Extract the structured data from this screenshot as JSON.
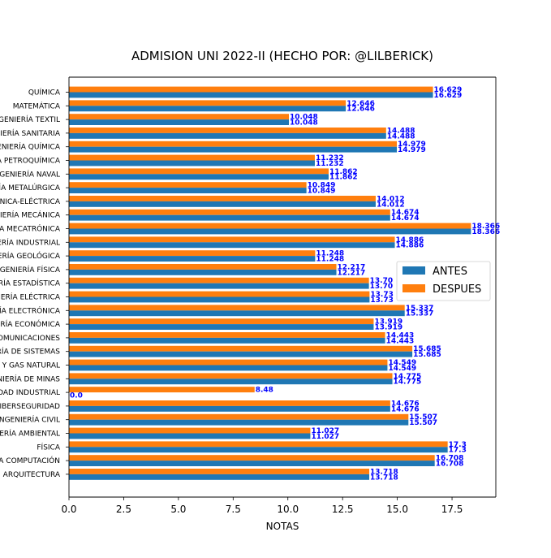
{
  "chart_data": {
    "type": "bar",
    "orientation": "horizontal",
    "title": "ADMISION UNI 2022-II (HECHO POR: @LILBERICK)",
    "xlabel": "NOTAS",
    "ylabel": "",
    "xlim": [
      0,
      19.5
    ],
    "xticks": [
      "0.0",
      "2.5",
      "5.0",
      "7.5",
      "10.0",
      "12.5",
      "15.0",
      "17.5"
    ],
    "grid": false,
    "legend_position": "center-right",
    "label_color": "#0000ff",
    "categories": [
      "QUÍMICA",
      "MATEMÁTICA",
      "INGENIERÍA TEXTIL",
      "INGENIERÍA SANITARIA",
      "INGENIERÍA QUÍMICA",
      "INGENIERÍA PETROQUÍMICA",
      "INGENIERÍA NAVAL",
      "INGENIERÍA METALÚRGICA",
      "INGENIERÍA MECÁNICA-ELÉCTRICA",
      "INGENIERÍA MECÁNICA",
      "INGENIERÍA MECATRÓNICA",
      "INGENIERÍA INDUSTRIAL",
      "INGENIERÍA GEOLÓGICA",
      "INGENIERÍA FÍSICA",
      "INGENIERÍA ESTADÍSTICA",
      "INGENIERÍA ELÉCTRICA",
      "INGENIERÍA ELECTRÓNICA",
      "INGENIERÍA ECONÓMICA",
      "INGENIERÍA DE TELECOMUNICACIONES",
      "INGENIERÍA DE SISTEMAS",
      "INGENIERÍA DE PETRÓLEO Y GAS NATURAL",
      "INGENIERÍA DE MINAS",
      "INGENIERÍA DE HIGIENE Y SEGURIDAD INDUSTRIAL",
      "INGENIERÍA DE CIBERSEGURIDAD",
      "INGENIERÍA CIVIL",
      "INGENIERÍA AMBIENTAL",
      "FÍSICA",
      "CIENCIA DE LA COMPUTACIÓN",
      "ARQUITECTURA"
    ],
    "series": [
      {
        "name": "ANTES",
        "color": "#1f77b4",
        "values": [
          16.629,
          12.646,
          10.048,
          14.488,
          14.979,
          11.232,
          11.862,
          10.849,
          14.012,
          14.674,
          18.366,
          14.886,
          11.248,
          12.217,
          13.704,
          13.731,
          15.337,
          13.919,
          14.443,
          15.685,
          14.549,
          14.775,
          0.0,
          14.676,
          15.507,
          11.027,
          17.3,
          16.708,
          13.718
        ]
      },
      {
        "name": "DESPUES",
        "color": "#ff7f0e",
        "values": [
          16.629,
          12.646,
          10.048,
          14.488,
          14.979,
          11.232,
          11.862,
          10.849,
          14.012,
          14.674,
          18.366,
          14.886,
          11.248,
          12.217,
          13.704,
          13.731,
          15.337,
          13.919,
          14.443,
          15.685,
          14.549,
          14.775,
          8.48,
          14.676,
          15.507,
          11.027,
          17.3,
          16.708,
          13.718
        ]
      }
    ],
    "value_labels": {
      "ANTES": [
        "16.629",
        "12.646",
        "10.048",
        "14.488",
        "14.979",
        "11.232",
        "11.862",
        "10.849",
        "14.012",
        "14.674",
        "18.366",
        "14.886",
        "11.248",
        "12.217",
        "13.70",
        "13.73",
        "15.337",
        "13.919",
        "14.443",
        "15.685",
        "14.549",
        "14.775",
        "0.0",
        "14.676",
        "15.507",
        "11.027",
        "17.3",
        "16.708",
        "13.718"
      ],
      "DESPUES": [
        "16.629",
        "12.646",
        "10.048",
        "14.488",
        "14.979",
        "11.232",
        "11.862",
        "10.849",
        "14.012",
        "14.674",
        "18.366",
        "14.886",
        "11.248",
        "12.217",
        "13.70",
        "13.73",
        "15.337",
        "13.919",
        "14.443",
        "15.685",
        "14.549",
        "14.775",
        "8.48",
        "14.676",
        "15.507",
        "11.027",
        "17.3",
        "16.708",
        "13.718"
      ]
    }
  }
}
